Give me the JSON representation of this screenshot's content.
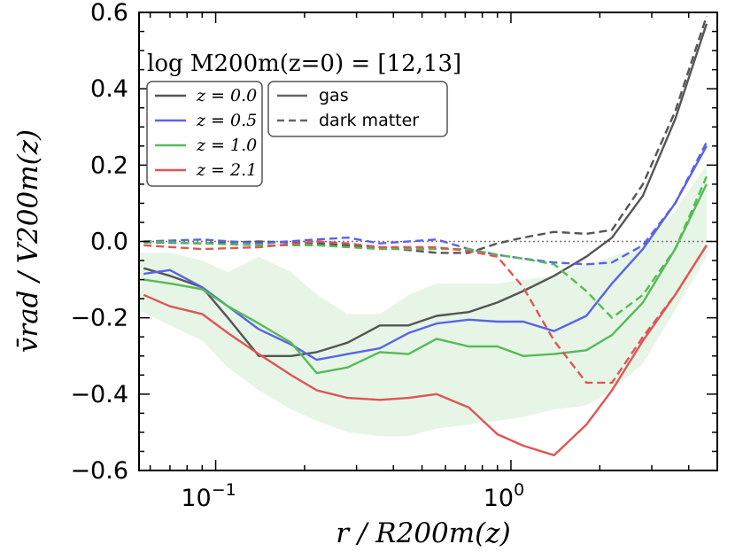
{
  "chart_data": {
    "type": "line",
    "annotation": "log M200m(z=0) = [12,13]",
    "xlabel": "r / R200m(z)",
    "ylabel": "v̄rad / V200m(z)",
    "xscale": "log",
    "xlim": [
      0.055,
      5.0
    ],
    "ylim": [
      -0.6,
      0.6
    ],
    "y_ticks": [
      {
        "v": 0.6,
        "label": "0.6"
      },
      {
        "v": 0.4,
        "label": "0.4"
      },
      {
        "v": 0.2,
        "label": "0.2"
      },
      {
        "v": 0.0,
        "label": "0.0"
      },
      {
        "v": -0.2,
        "label": "−0.2"
      },
      {
        "v": -0.4,
        "label": "−0.4"
      },
      {
        "v": -0.6,
        "label": "−0.6"
      }
    ],
    "x_ticks": [
      {
        "v": 0.1,
        "base": "10",
        "exp": "−1"
      },
      {
        "v": 1.0,
        "base": "10",
        "exp": "0"
      }
    ],
    "legend_redshift": {
      "position": "top-left",
      "entries": [
        {
          "label": "z = 0.0",
          "color": "#555555"
        },
        {
          "label": "z = 0.5",
          "color": "#5a63e6"
        },
        {
          "label": "z = 1.0",
          "color": "#55bb55"
        },
        {
          "label": "z = 2.1",
          "color": "#e05555"
        }
      ]
    },
    "legend_style": {
      "position": "top-center",
      "entries": [
        {
          "label": "gas",
          "style": "solid"
        },
        {
          "label": "dark matter",
          "style": "dashed"
        }
      ]
    },
    "zero_line": 0.0,
    "band": {
      "name": "z=1.0 gas scatter",
      "color": "#55bb55",
      "x": [
        0.055,
        0.07,
        0.09,
        0.11,
        0.14,
        0.18,
        0.22,
        0.28,
        0.36,
        0.45,
        0.56,
        0.72,
        0.9,
        1.1,
        1.4,
        1.8,
        2.2,
        2.8,
        3.6,
        4.6
      ],
      "upper": [
        -0.03,
        -0.03,
        -0.05,
        -0.08,
        -0.04,
        -0.08,
        -0.14,
        -0.19,
        -0.19,
        -0.14,
        -0.11,
        -0.11,
        -0.11,
        -0.1,
        -0.09,
        -0.06,
        -0.04,
        -0.01,
        0.08,
        0.2
      ],
      "lower": [
        -0.18,
        -0.22,
        -0.26,
        -0.33,
        -0.39,
        -0.44,
        -0.47,
        -0.5,
        -0.51,
        -0.51,
        -0.49,
        -0.48,
        -0.47,
        -0.46,
        -0.44,
        -0.43,
        -0.39,
        -0.32,
        -0.18,
        -0.04
      ]
    },
    "series": [
      {
        "name": "z=0.0 gas",
        "color": "#555555",
        "dash": "solid",
        "x": [
          0.057,
          0.07,
          0.09,
          0.11,
          0.14,
          0.18,
          0.22,
          0.28,
          0.36,
          0.45,
          0.56,
          0.72,
          0.9,
          1.1,
          1.4,
          1.8,
          2.2,
          2.8,
          3.6,
          4.6
        ],
        "y": [
          -0.07,
          -0.09,
          -0.12,
          -0.2,
          -0.3,
          -0.3,
          -0.29,
          -0.265,
          -0.22,
          -0.22,
          -0.195,
          -0.185,
          -0.16,
          -0.13,
          -0.09,
          -0.04,
          0.01,
          0.12,
          0.32,
          0.57
        ]
      },
      {
        "name": "z=0.5 gas",
        "color": "#5a63e6",
        "dash": "solid",
        "x": [
          0.057,
          0.07,
          0.09,
          0.11,
          0.14,
          0.18,
          0.22,
          0.28,
          0.36,
          0.45,
          0.56,
          0.72,
          0.9,
          1.1,
          1.4,
          1.8,
          2.2,
          2.8,
          3.6,
          4.6
        ],
        "y": [
          -0.085,
          -0.075,
          -0.12,
          -0.17,
          -0.23,
          -0.27,
          -0.31,
          -0.295,
          -0.28,
          -0.24,
          -0.215,
          -0.205,
          -0.21,
          -0.21,
          -0.235,
          -0.195,
          -0.11,
          -0.02,
          0.1,
          0.25
        ]
      },
      {
        "name": "z=1.0 gas",
        "color": "#55bb55",
        "dash": "solid",
        "x": [
          0.057,
          0.07,
          0.09,
          0.11,
          0.14,
          0.18,
          0.22,
          0.28,
          0.36,
          0.45,
          0.56,
          0.72,
          0.9,
          1.1,
          1.4,
          1.8,
          2.2,
          2.8,
          3.6,
          4.6
        ],
        "y": [
          -0.1,
          -0.11,
          -0.125,
          -0.17,
          -0.215,
          -0.265,
          -0.345,
          -0.33,
          -0.29,
          -0.295,
          -0.255,
          -0.275,
          -0.275,
          -0.3,
          -0.295,
          -0.285,
          -0.245,
          -0.16,
          -0.02,
          0.15
        ]
      },
      {
        "name": "z=2.1 gas",
        "color": "#e05555",
        "dash": "solid",
        "x": [
          0.057,
          0.07,
          0.09,
          0.11,
          0.14,
          0.18,
          0.22,
          0.28,
          0.36,
          0.45,
          0.56,
          0.72,
          0.9,
          1.1,
          1.4,
          1.8,
          2.2,
          2.8,
          3.6,
          4.6
        ],
        "y": [
          -0.14,
          -0.17,
          -0.19,
          -0.24,
          -0.295,
          -0.35,
          -0.39,
          -0.41,
          -0.415,
          -0.41,
          -0.4,
          -0.435,
          -0.505,
          -0.535,
          -0.56,
          -0.48,
          -0.39,
          -0.26,
          -0.14,
          -0.01
        ]
      },
      {
        "name": "z=0.0 dark matter",
        "color": "#555555",
        "dash": "dashed",
        "x": [
          0.057,
          0.09,
          0.14,
          0.22,
          0.36,
          0.56,
          0.72,
          0.9,
          1.1,
          1.4,
          1.8,
          2.2,
          2.8,
          3.6,
          4.6
        ],
        "y": [
          -0.002,
          -0.005,
          0.0,
          -0.005,
          -0.015,
          -0.03,
          -0.03,
          -0.005,
          0.01,
          0.025,
          0.02,
          0.03,
          0.15,
          0.34,
          0.59
        ]
      },
      {
        "name": "z=0.5 dark matter",
        "color": "#5a63e6",
        "dash": "dashed",
        "x": [
          0.057,
          0.09,
          0.14,
          0.22,
          0.28,
          0.36,
          0.56,
          0.72,
          0.9,
          1.1,
          1.4,
          1.8,
          2.2,
          2.8,
          3.6,
          4.6
        ],
        "y": [
          0.0,
          0.005,
          -0.005,
          0.005,
          0.01,
          -0.005,
          0.005,
          -0.02,
          -0.035,
          -0.045,
          -0.055,
          -0.06,
          -0.055,
          -0.01,
          0.1,
          0.26
        ]
      },
      {
        "name": "z=1.0 dark matter",
        "color": "#55bb55",
        "dash": "dashed",
        "x": [
          0.057,
          0.09,
          0.14,
          0.22,
          0.36,
          0.56,
          0.72,
          0.9,
          1.1,
          1.4,
          1.8,
          2.2,
          2.8,
          3.6,
          4.6
        ],
        "y": [
          0.0,
          -0.005,
          -0.01,
          -0.01,
          -0.02,
          -0.02,
          -0.02,
          -0.035,
          -0.045,
          -0.06,
          -0.13,
          -0.2,
          -0.14,
          -0.02,
          0.17
        ]
      },
      {
        "name": "z=2.1 dark matter",
        "color": "#e05555",
        "dash": "dashed",
        "x": [
          0.057,
          0.09,
          0.14,
          0.22,
          0.28,
          0.36,
          0.56,
          0.72,
          0.9,
          1.1,
          1.4,
          1.8,
          2.2,
          2.8,
          3.6,
          4.6
        ],
        "y": [
          -0.01,
          -0.02,
          -0.015,
          0.0,
          -0.005,
          -0.015,
          -0.015,
          -0.025,
          -0.04,
          -0.12,
          -0.26,
          -0.37,
          -0.37,
          -0.25,
          -0.14,
          -0.01
        ]
      }
    ]
  }
}
